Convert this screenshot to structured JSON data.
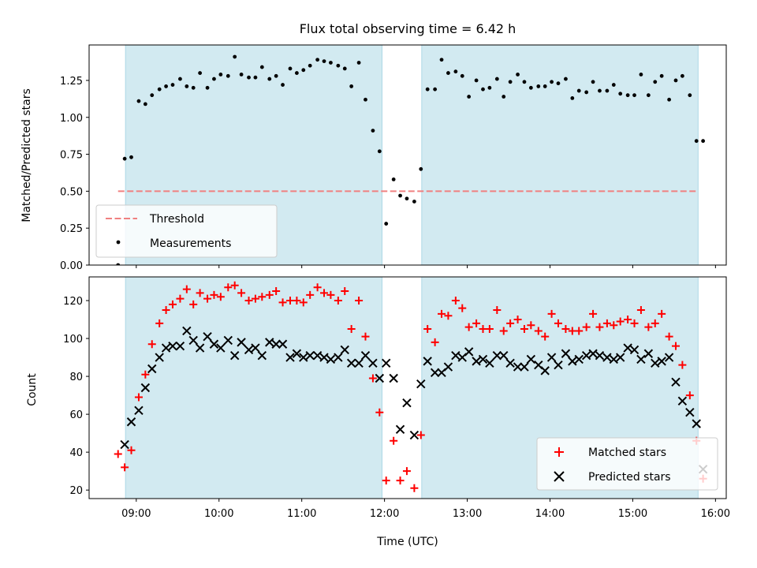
{
  "chart_data": {
    "type": "scatter",
    "title": "Flux total observing time = 6.42 h",
    "xlabel": "Time (UTC)",
    "x_ticks_hours": [
      9,
      10,
      11,
      12,
      13,
      14,
      15,
      16
    ],
    "x_tick_labels": [
      "09:00",
      "10:00",
      "11:00",
      "12:00",
      "13:00",
      "14:00",
      "15:00",
      "16:00"
    ],
    "xlim_hours": [
      8.43,
      16.13
    ],
    "shaded_spans_hours": [
      [
        8.87,
        11.97
      ],
      [
        12.45,
        15.79
      ]
    ],
    "shade_color": "#add8e6",
    "top_panel": {
      "ylabel": "Matched/Predicted stars",
      "ylim": [
        0.0,
        1.49
      ],
      "y_ticks": [
        0.0,
        0.25,
        0.5,
        0.75,
        1.0,
        1.25
      ],
      "y_tick_labels": [
        "0.00",
        "0.25",
        "0.50",
        "0.75",
        "1.00",
        "1.25"
      ],
      "threshold": {
        "label": "Threshold",
        "value": 0.5,
        "x_range_hours": [
          8.78,
          15.79
        ],
        "color": "#f08080"
      },
      "measurements_label": "Measurements",
      "measurements": [
        [
          8.78,
          0.0
        ],
        [
          8.86,
          0.72
        ],
        [
          8.94,
          0.73
        ],
        [
          9.03,
          1.11
        ],
        [
          9.11,
          1.09
        ],
        [
          9.19,
          1.15
        ],
        [
          9.28,
          1.19
        ],
        [
          9.36,
          1.21
        ],
        [
          9.44,
          1.22
        ],
        [
          9.53,
          1.26
        ],
        [
          9.61,
          1.21
        ],
        [
          9.69,
          1.2
        ],
        [
          9.77,
          1.3
        ],
        [
          9.86,
          1.2
        ],
        [
          9.94,
          1.26
        ],
        [
          10.02,
          1.29
        ],
        [
          10.11,
          1.28
        ],
        [
          10.19,
          1.41
        ],
        [
          10.27,
          1.29
        ],
        [
          10.36,
          1.27
        ],
        [
          10.44,
          1.27
        ],
        [
          10.52,
          1.34
        ],
        [
          10.61,
          1.26
        ],
        [
          10.69,
          1.28
        ],
        [
          10.77,
          1.22
        ],
        [
          10.86,
          1.33
        ],
        [
          10.94,
          1.3
        ],
        [
          11.02,
          1.32
        ],
        [
          11.1,
          1.35
        ],
        [
          11.19,
          1.39
        ],
        [
          11.27,
          1.38
        ],
        [
          11.35,
          1.37
        ],
        [
          11.44,
          1.35
        ],
        [
          11.52,
          1.33
        ],
        [
          11.6,
          1.21
        ],
        [
          11.69,
          1.37
        ],
        [
          11.77,
          1.12
        ],
        [
          11.86,
          0.91
        ],
        [
          11.94,
          0.77
        ],
        [
          12.02,
          0.28
        ],
        [
          12.11,
          0.58
        ],
        [
          12.19,
          0.47
        ],
        [
          12.27,
          0.45
        ],
        [
          12.36,
          0.43
        ],
        [
          12.44,
          0.65
        ],
        [
          12.52,
          1.19
        ],
        [
          12.61,
          1.19
        ],
        [
          12.69,
          1.39
        ],
        [
          12.77,
          1.3
        ],
        [
          12.86,
          1.31
        ],
        [
          12.94,
          1.28
        ],
        [
          13.02,
          1.14
        ],
        [
          13.11,
          1.25
        ],
        [
          13.19,
          1.19
        ],
        [
          13.27,
          1.2
        ],
        [
          13.36,
          1.26
        ],
        [
          13.44,
          1.14
        ],
        [
          13.52,
          1.24
        ],
        [
          13.61,
          1.29
        ],
        [
          13.69,
          1.24
        ],
        [
          13.77,
          1.2
        ],
        [
          13.86,
          1.21
        ],
        [
          13.94,
          1.21
        ],
        [
          14.02,
          1.24
        ],
        [
          14.1,
          1.23
        ],
        [
          14.19,
          1.26
        ],
        [
          14.27,
          1.13
        ],
        [
          14.35,
          1.18
        ],
        [
          14.44,
          1.17
        ],
        [
          14.52,
          1.24
        ],
        [
          14.6,
          1.18
        ],
        [
          14.69,
          1.18
        ],
        [
          14.77,
          1.22
        ],
        [
          14.85,
          1.16
        ],
        [
          14.94,
          1.15
        ],
        [
          15.02,
          1.15
        ],
        [
          15.1,
          1.29
        ],
        [
          15.19,
          1.15
        ],
        [
          15.27,
          1.24
        ],
        [
          15.35,
          1.28
        ],
        [
          15.44,
          1.12
        ],
        [
          15.52,
          1.25
        ],
        [
          15.6,
          1.28
        ],
        [
          15.69,
          1.15
        ],
        [
          15.77,
          0.84
        ],
        [
          15.85,
          0.84
        ]
      ]
    },
    "bottom_panel": {
      "ylabel": "Count",
      "ylim": [
        15.5,
        132.5
      ],
      "y_ticks": [
        20,
        40,
        60,
        80,
        100,
        120
      ],
      "y_tick_labels": [
        "20",
        "40",
        "60",
        "80",
        "100",
        "120"
      ],
      "matched_label": "Matched stars",
      "predicted_label": "Predicted stars",
      "matched_color": "#ff0000",
      "predicted_color": "#000000",
      "matched": [
        [
          8.78,
          39
        ],
        [
          8.86,
          32
        ],
        [
          8.94,
          41
        ],
        [
          9.03,
          69
        ],
        [
          9.11,
          81
        ],
        [
          9.19,
          97
        ],
        [
          9.28,
          108
        ],
        [
          9.36,
          115
        ],
        [
          9.44,
          118
        ],
        [
          9.53,
          121
        ],
        [
          9.61,
          126
        ],
        [
          9.69,
          118
        ],
        [
          9.77,
          124
        ],
        [
          9.86,
          121
        ],
        [
          9.94,
          123
        ],
        [
          10.02,
          122
        ],
        [
          10.11,
          127
        ],
        [
          10.19,
          128
        ],
        [
          10.27,
          124
        ],
        [
          10.36,
          120
        ],
        [
          10.44,
          121
        ],
        [
          10.52,
          122
        ],
        [
          10.61,
          123
        ],
        [
          10.69,
          125
        ],
        [
          10.77,
          119
        ],
        [
          10.86,
          120
        ],
        [
          10.94,
          120
        ],
        [
          11.02,
          119
        ],
        [
          11.1,
          123
        ],
        [
          11.19,
          127
        ],
        [
          11.27,
          124
        ],
        [
          11.35,
          123
        ],
        [
          11.44,
          120
        ],
        [
          11.52,
          125
        ],
        [
          11.6,
          105
        ],
        [
          11.69,
          120
        ],
        [
          11.77,
          101
        ],
        [
          11.86,
          79
        ],
        [
          11.94,
          61
        ],
        [
          12.02,
          25
        ],
        [
          12.11,
          46
        ],
        [
          12.19,
          25
        ],
        [
          12.27,
          30
        ],
        [
          12.36,
          21
        ],
        [
          12.44,
          49
        ],
        [
          12.52,
          105
        ],
        [
          12.61,
          98
        ],
        [
          12.69,
          113
        ],
        [
          12.77,
          112
        ],
        [
          12.86,
          120
        ],
        [
          12.94,
          116
        ],
        [
          13.02,
          106
        ],
        [
          13.11,
          108
        ],
        [
          13.19,
          105
        ],
        [
          13.27,
          105
        ],
        [
          13.36,
          115
        ],
        [
          13.44,
          104
        ],
        [
          13.52,
          108
        ],
        [
          13.61,
          110
        ],
        [
          13.69,
          105
        ],
        [
          13.77,
          107
        ],
        [
          13.86,
          104
        ],
        [
          13.94,
          101
        ],
        [
          14.02,
          113
        ],
        [
          14.1,
          108
        ],
        [
          14.19,
          105
        ],
        [
          14.27,
          104
        ],
        [
          14.35,
          104
        ],
        [
          14.44,
          106
        ],
        [
          14.52,
          113
        ],
        [
          14.6,
          106
        ],
        [
          14.69,
          108
        ],
        [
          14.77,
          107
        ],
        [
          14.85,
          109
        ],
        [
          14.94,
          110
        ],
        [
          15.02,
          108
        ],
        [
          15.1,
          115
        ],
        [
          15.19,
          106
        ],
        [
          15.27,
          108
        ],
        [
          15.35,
          113
        ],
        [
          15.44,
          101
        ],
        [
          15.52,
          96
        ],
        [
          15.6,
          86
        ],
        [
          15.69,
          70
        ],
        [
          15.77,
          46
        ],
        [
          15.85,
          26
        ]
      ],
      "predicted": [
        [
          8.86,
          44
        ],
        [
          8.94,
          56
        ],
        [
          9.03,
          62
        ],
        [
          9.11,
          74
        ],
        [
          9.19,
          84
        ],
        [
          9.28,
          90
        ],
        [
          9.36,
          95
        ],
        [
          9.44,
          96
        ],
        [
          9.53,
          96
        ],
        [
          9.61,
          104
        ],
        [
          9.69,
          99
        ],
        [
          9.77,
          95
        ],
        [
          9.86,
          101
        ],
        [
          9.94,
          97
        ],
        [
          10.02,
          95
        ],
        [
          10.11,
          99
        ],
        [
          10.19,
          91
        ],
        [
          10.27,
          98
        ],
        [
          10.36,
          94
        ],
        [
          10.44,
          95
        ],
        [
          10.52,
          91
        ],
        [
          10.61,
          98
        ],
        [
          10.69,
          97
        ],
        [
          10.77,
          97
        ],
        [
          10.86,
          90
        ],
        [
          10.94,
          92
        ],
        [
          11.02,
          90
        ],
        [
          11.1,
          91
        ],
        [
          11.19,
          91
        ],
        [
          11.27,
          90
        ],
        [
          11.35,
          89
        ],
        [
          11.44,
          90
        ],
        [
          11.52,
          94
        ],
        [
          11.6,
          87
        ],
        [
          11.69,
          87
        ],
        [
          11.77,
          91
        ],
        [
          11.86,
          87
        ],
        [
          11.94,
          79
        ],
        [
          12.02,
          87
        ],
        [
          12.11,
          79
        ],
        [
          12.19,
          52
        ],
        [
          12.27,
          66
        ],
        [
          12.36,
          49
        ],
        [
          12.44,
          76
        ],
        [
          12.52,
          88
        ],
        [
          12.61,
          82
        ],
        [
          12.69,
          82
        ],
        [
          12.77,
          85
        ],
        [
          12.86,
          91
        ],
        [
          12.94,
          90
        ],
        [
          13.02,
          93
        ],
        [
          13.11,
          88
        ],
        [
          13.19,
          89
        ],
        [
          13.27,
          87
        ],
        [
          13.36,
          91
        ],
        [
          13.44,
          91
        ],
        [
          13.52,
          87
        ],
        [
          13.61,
          85
        ],
        [
          13.69,
          85
        ],
        [
          13.77,
          89
        ],
        [
          13.86,
          86
        ],
        [
          13.94,
          83
        ],
        [
          14.02,
          90
        ],
        [
          14.1,
          86
        ],
        [
          14.19,
          92
        ],
        [
          14.27,
          88
        ],
        [
          14.35,
          89
        ],
        [
          14.44,
          91
        ],
        [
          14.52,
          92
        ],
        [
          14.6,
          91
        ],
        [
          14.69,
          90
        ],
        [
          14.77,
          89
        ],
        [
          14.85,
          90
        ],
        [
          14.94,
          95
        ],
        [
          15.02,
          94
        ],
        [
          15.1,
          89
        ],
        [
          15.19,
          92
        ],
        [
          15.27,
          87
        ],
        [
          15.35,
          88
        ],
        [
          15.44,
          90
        ],
        [
          15.52,
          77
        ],
        [
          15.6,
          67
        ],
        [
          15.69,
          61
        ],
        [
          15.77,
          55
        ],
        [
          15.85,
          31
        ]
      ]
    }
  }
}
